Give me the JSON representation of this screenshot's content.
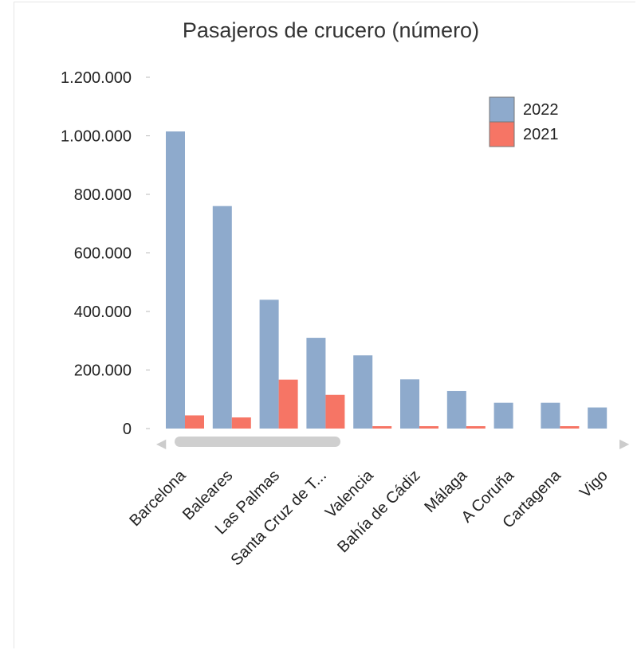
{
  "chart_data": {
    "type": "bar",
    "title": "Pasajeros de crucero (número)",
    "categories": [
      "Barcelona",
      "Baleares",
      "Las Palmas",
      "Santa Cruz de T...",
      "Valencia",
      "Bahía de Cádiz",
      "Málaga",
      "A Coruña",
      "Cartagena",
      "Vigo"
    ],
    "series": [
      {
        "name": "2022",
        "color": "#8eaacc",
        "values": [
          1015000,
          760000,
          440000,
          310000,
          250000,
          168000,
          128000,
          88000,
          88000,
          72000
        ]
      },
      {
        "name": "2021",
        "color": "#f67565",
        "values": [
          45000,
          38000,
          167000,
          115000,
          5000,
          5000,
          5000,
          0,
          5000,
          0
        ]
      }
    ],
    "ylim": [
      0,
      1200000
    ],
    "yticks": [
      "0",
      "200.000",
      "400.000",
      "600.000",
      "800.000",
      "1.000.000",
      "1.200.000"
    ],
    "xlabel": "",
    "ylabel": "",
    "legend_position": "top-right",
    "grid": false
  },
  "scrollbar": {
    "left_arrow": "◀",
    "right_arrow": "▶"
  }
}
